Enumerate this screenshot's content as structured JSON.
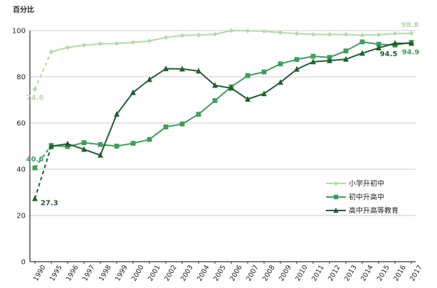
{
  "chart_data": {
    "type": "line",
    "ylabel": "百分比",
    "ylim": [
      0,
      100
    ],
    "yticks": [
      "0",
      "20",
      "40",
      "60",
      "80",
      "100"
    ],
    "categories": [
      "1990",
      "1995",
      "1996",
      "1997",
      "1998",
      "1999",
      "2000",
      "2001",
      "2002",
      "2003",
      "2004",
      "2005",
      "2006",
      "2007",
      "2008",
      "2009",
      "2010",
      "2011",
      "2012",
      "2013",
      "2014",
      "2015",
      "2016",
      "2017"
    ],
    "grid": true,
    "legend_position": "right",
    "series": [
      {
        "name": "小学升初中",
        "color": "#b4d9a8",
        "marker": "diamond",
        "values": [
          74.6,
          90.8,
          92.7,
          93.7,
          94.3,
          94.4,
          94.9,
          95.5,
          97.0,
          97.9,
          98.1,
          98.4,
          100.0,
          99.9,
          99.7,
          99.1,
          98.7,
          98.3,
          98.3,
          98.3,
          98.0,
          98.2,
          98.7,
          98.8
        ],
        "labels": [
          {
            "index": 0,
            "text": "74.6"
          },
          {
            "index": 23,
            "text": "98.8"
          }
        ]
      },
      {
        "name": "初中升高中",
        "color": "#3e9e5c",
        "marker": "square",
        "values": [
          40.6,
          50.3,
          49.8,
          51.5,
          50.7,
          50.0,
          51.2,
          52.9,
          58.3,
          59.6,
          63.8,
          69.7,
          75.7,
          80.5,
          82.1,
          85.6,
          87.5,
          88.9,
          88.4,
          91.2,
          95.1,
          94.1,
          93.7,
          94.9
        ],
        "labels": [
          {
            "index": 0,
            "text": "40.6"
          },
          {
            "index": 23,
            "text": "94.9"
          }
        ]
      },
      {
        "name": "高中升高等教育",
        "color": "#1e5e30",
        "marker": "triangle",
        "values": [
          27.3,
          49.9,
          51.0,
          48.6,
          46.1,
          63.8,
          73.2,
          78.8,
          83.5,
          83.4,
          82.5,
          76.3,
          75.1,
          70.3,
          72.7,
          77.6,
          83.3,
          86.5,
          87.0,
          87.6,
          90.2,
          92.5,
          94.5,
          94.5
        ],
        "labels": [
          {
            "index": 0,
            "text": "27.3"
          },
          {
            "index": 22,
            "text": "94.5"
          }
        ]
      }
    ]
  }
}
